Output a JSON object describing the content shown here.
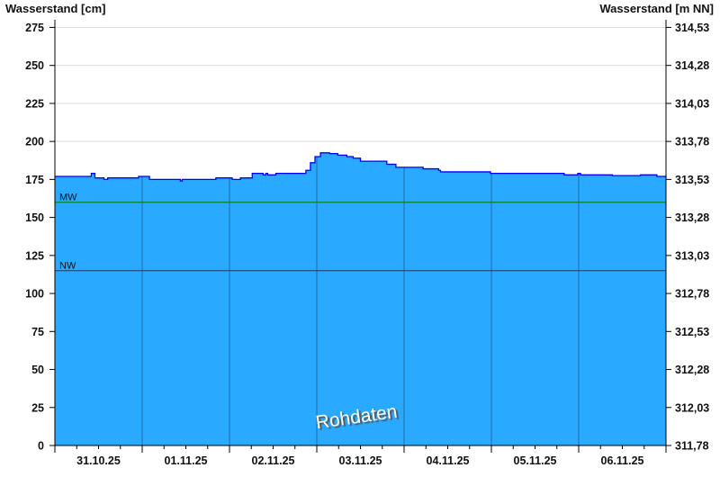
{
  "chart_data": {
    "type": "area",
    "ylabel_left": "Wasserstand [cm]",
    "ylabel_right": "Wasserstand [m NN]",
    "ylim": [
      0,
      280
    ],
    "yticks_left": [
      "0",
      "25",
      "50",
      "75",
      "100",
      "125",
      "150",
      "175",
      "200",
      "225",
      "250",
      "275"
    ],
    "yticks_left_values": [
      0,
      25,
      50,
      75,
      100,
      125,
      150,
      175,
      200,
      225,
      250,
      275
    ],
    "yticks_right": [
      "311,78",
      "312,03",
      "312,28",
      "312,53",
      "312,78",
      "313,03",
      "313,28",
      "313,53",
      "313,78",
      "314,03",
      "314,28",
      "314,53"
    ],
    "xlim": [
      "2025-10-31T00:00",
      "2025-11-07T00:00"
    ],
    "xtick_labels": [
      "31.10.25",
      "01.11.25",
      "02.11.25",
      "03.11.25",
      "04.11.25",
      "05.11.25",
      "06.11.25"
    ],
    "grid": true,
    "reference_lines": [
      {
        "label": "MW",
        "value": 160,
        "color": "#008000"
      },
      {
        "label": "NW",
        "value": 115,
        "color": "#1a3a6a"
      }
    ],
    "watermark": "Rohdaten",
    "colors": {
      "fill": "#29a9ff",
      "line": "#0000ff",
      "grid": "#dddddd",
      "day_lines": "#1f5f8f"
    },
    "series": [
      {
        "points": [
          [
            "2025-10-31T00:00",
            177
          ],
          [
            "2025-10-31T09:00",
            177
          ],
          [
            "2025-10-31T10:00",
            179
          ],
          [
            "2025-10-31T11:00",
            176
          ],
          [
            "2025-10-31T13:30",
            175
          ],
          [
            "2025-10-31T14:30",
            176
          ],
          [
            "2025-10-31T23:00",
            177
          ],
          [
            "2025-11-01T02:00",
            175
          ],
          [
            "2025-11-01T10:30",
            174
          ],
          [
            "2025-11-01T11:00",
            175
          ],
          [
            "2025-11-01T20:15",
            176
          ],
          [
            "2025-11-02T00:45",
            175
          ],
          [
            "2025-11-02T03:00",
            176
          ],
          [
            "2025-11-02T06:15",
            179
          ],
          [
            "2025-11-02T09:15",
            178
          ],
          [
            "2025-11-02T10:00",
            179
          ],
          [
            "2025-11-02T10:30",
            178
          ],
          [
            "2025-11-02T12:45",
            179
          ],
          [
            "2025-11-02T20:00",
            179
          ],
          [
            "2025-11-02T21:00",
            181
          ],
          [
            "2025-11-02T22:15",
            186
          ],
          [
            "2025-11-02T23:30",
            190
          ],
          [
            "2025-11-03T01:00",
            192.5
          ],
          [
            "2025-11-03T03:30",
            192
          ],
          [
            "2025-11-03T05:45",
            191
          ],
          [
            "2025-11-03T08:15",
            190
          ],
          [
            "2025-11-03T10:00",
            189
          ],
          [
            "2025-11-03T12:00",
            187
          ],
          [
            "2025-11-03T17:15",
            187
          ],
          [
            "2025-11-03T19:15",
            185
          ],
          [
            "2025-11-03T21:45",
            183
          ],
          [
            "2025-11-04T04:45",
            183
          ],
          [
            "2025-11-04T05:15",
            182
          ],
          [
            "2025-11-04T09:30",
            181
          ],
          [
            "2025-11-04T10:00",
            180
          ],
          [
            "2025-11-04T23:00",
            180
          ],
          [
            "2025-11-04T23:45",
            179
          ],
          [
            "2025-11-05T19:30",
            179
          ],
          [
            "2025-11-05T20:00",
            178
          ],
          [
            "2025-11-05T23:45",
            179
          ],
          [
            "2025-11-06T00:30",
            178
          ],
          [
            "2025-11-06T09:15",
            177.5
          ],
          [
            "2025-11-06T17:00",
            178
          ],
          [
            "2025-11-06T21:30",
            177
          ],
          [
            "2025-11-07T00:00",
            176.5
          ]
        ]
      }
    ]
  }
}
